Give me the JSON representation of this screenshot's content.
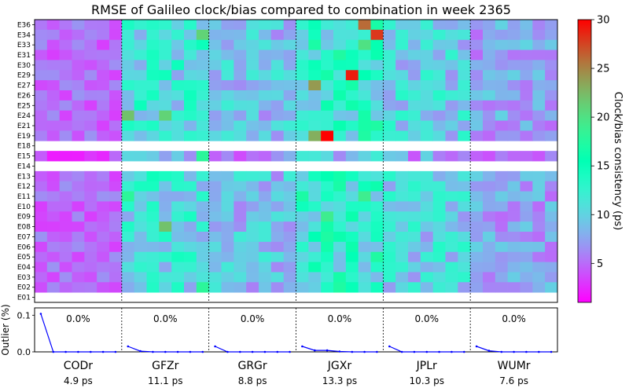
{
  "chart_data": [
    {
      "type": "heatmap",
      "title": "RMSE of Galileo clock/bias compared to combination in week 2365",
      "satellites_top_to_bottom": [
        "E36",
        "E34",
        "E33",
        "E31",
        "E30",
        "E29",
        "E27",
        "E26",
        "E25",
        "E24",
        "E21",
        "E19",
        "E18",
        "E15",
        "E14",
        "E13",
        "E12",
        "E11",
        "E10",
        "E09",
        "E08",
        "E07",
        "E06",
        "E05",
        "E04",
        "E03",
        "E02",
        "E01"
      ],
      "missing_satellites": [
        "E18",
        "E14",
        "E01"
      ],
      "analysis_centers": [
        "CODr",
        "GFZr",
        "GRGr",
        "JGXr",
        "JPLr",
        "WUMr"
      ],
      "days_per_center": 7,
      "center_rms": [
        "4.9 ps",
        "11.1 ps",
        "8.8 ps",
        "13.3 ps",
        "10.3 ps",
        "7.6 ps"
      ],
      "colorbar": {
        "label": "Clock/bias consistency (ps)",
        "ticks": [
          5,
          10,
          15,
          20,
          25,
          30
        ],
        "range": [
          1,
          30
        ],
        "colormap": "rainbow"
      },
      "center_base_rms_ps": {
        "CODr": 5,
        "GFZr": 11,
        "GRGr": 9,
        "JGXr": 13,
        "JPLr": 10,
        "WUMr": 7.5
      },
      "highlighted_cells": [
        {
          "sat": "E36",
          "center": "JGXr",
          "day": 5,
          "value": 26
        },
        {
          "sat": "E34",
          "center": "JGXr",
          "day": 6,
          "value": 28
        },
        {
          "sat": "E34",
          "center": "GFZr",
          "day": 6,
          "value": 21
        },
        {
          "sat": "E29",
          "center": "JGXr",
          "day": 4,
          "value": 29
        },
        {
          "sat": "E27",
          "center": "JGXr",
          "day": 1,
          "value": 24
        },
        {
          "sat": "E24",
          "center": "GFZr",
          "day": 0,
          "value": 22
        },
        {
          "sat": "E24",
          "center": "GFZr",
          "day": 3,
          "value": 21
        },
        {
          "sat": "E19",
          "center": "JGXr",
          "day": 2,
          "value": 30
        },
        {
          "sat": "E19",
          "center": "JGXr",
          "day": 1,
          "value": 23
        },
        {
          "sat": "E08",
          "center": "GFZr",
          "day": 3,
          "value": 22
        },
        {
          "sat": "E09",
          "center": "JGXr",
          "day": 2,
          "value": 19
        },
        {
          "sat": "E11",
          "center": "JGXr",
          "day": 5,
          "value": 19
        },
        {
          "sat": "E11",
          "center": "GFZr",
          "day": 0,
          "value": 18
        },
        {
          "sat": "E33",
          "center": "JGXr",
          "day": 5,
          "value": 20
        },
        {
          "sat": "E15",
          "center": "GFZr",
          "day": 6,
          "value": 18
        },
        {
          "sat": "E02",
          "center": "GFZr",
          "day": 6,
          "value": 18
        }
      ]
    },
    {
      "type": "line",
      "ylabel": "Outlier (%)",
      "yticks": [
        "0.0",
        "0.1"
      ],
      "ylim": [
        0,
        0.12
      ],
      "outlier_labels": [
        "0.0%",
        "0.0%",
        "0.0%",
        "0.0%",
        "0.0%",
        "0.0%"
      ],
      "series": [
        {
          "center": "CODr",
          "values": [
            0.104,
            0,
            0,
            0,
            0,
            0,
            0
          ]
        },
        {
          "center": "GFZr",
          "values": [
            0.015,
            0.002,
            0,
            0,
            0,
            0,
            0
          ]
        },
        {
          "center": "GRGr",
          "values": [
            0.015,
            0,
            0,
            0,
            0,
            0,
            0
          ]
        },
        {
          "center": "JGXr",
          "values": [
            0.015,
            0.004,
            0.004,
            0.001,
            0,
            0,
            0
          ]
        },
        {
          "center": "JPLr",
          "values": [
            0.015,
            0,
            0,
            0,
            0,
            0,
            0
          ]
        },
        {
          "center": "WUMr",
          "values": [
            0.015,
            0.003,
            0,
            0,
            0,
            0,
            0
          ]
        }
      ],
      "line_color": "#0000ff"
    }
  ]
}
